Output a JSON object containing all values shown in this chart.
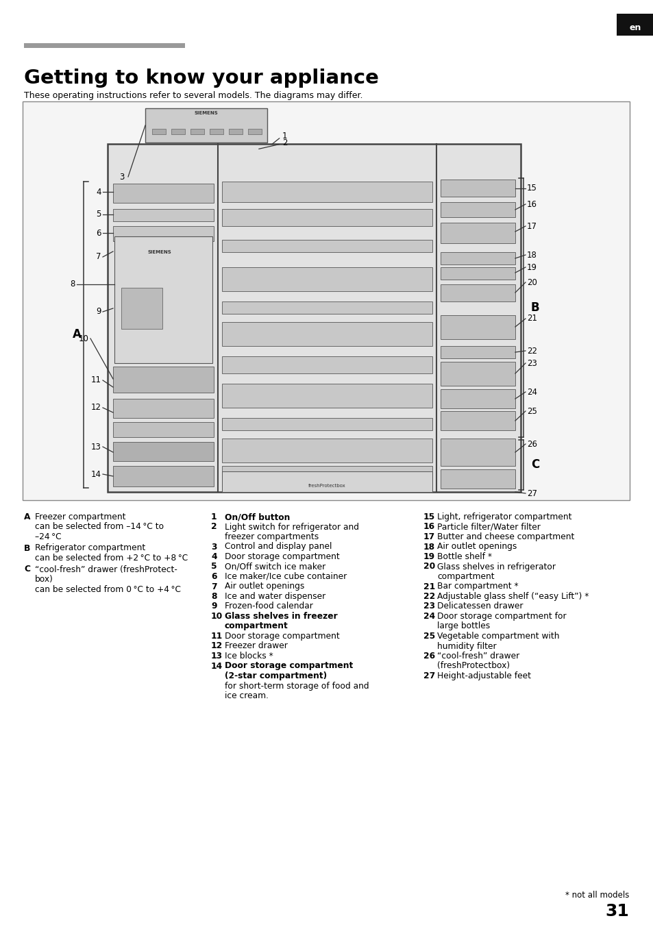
{
  "title": "Getting to know your appliance",
  "subtitle": "These operating instructions refer to several models. The diagrams may differ.",
  "page_num": "31",
  "lang_tag": "en",
  "header_bar_color": "#999999",
  "bg_color": "#ffffff",
  "text_color": "#000000",
  "diagram_border": "#777777",
  "col1_items": [
    {
      "label": "A",
      "bold_text": "Freezer compartment",
      "sub": "can be selected from –14 °C to\n–24 °C"
    },
    {
      "label": "B",
      "bold_text": "Refrigerator compartment",
      "sub": "can be selected from +2 °C to +8 °C"
    },
    {
      "label": "C",
      "bold_text": "“cool-fresh” drawer (freshProtect-\nbox)",
      "sub": "can be selected from 0 °C to +4 °C"
    }
  ],
  "col2_items": [
    {
      "num": "1",
      "bold": true,
      "text": "On/Off button"
    },
    {
      "num": "2",
      "bold": false,
      "text": "Light switch for refrigerator and\nfreezer compartments"
    },
    {
      "num": "3",
      "bold": false,
      "text": "Control and display panel"
    },
    {
      "num": "4",
      "bold": false,
      "text": "Door storage compartment"
    },
    {
      "num": "5",
      "bold": false,
      "text": "On/Off switch ice maker"
    },
    {
      "num": "6",
      "bold": false,
      "text": "Ice maker/Ice cube container"
    },
    {
      "num": "7",
      "bold": false,
      "text": "Air outlet openings"
    },
    {
      "num": "8",
      "bold": false,
      "text": "Ice and water dispenser"
    },
    {
      "num": "9",
      "bold": false,
      "text": "Frozen-food calendar"
    },
    {
      "num": "10",
      "bold": true,
      "text": "Glass shelves in freezer\ncompartment"
    },
    {
      "num": "11",
      "bold": false,
      "text": "Door storage compartment"
    },
    {
      "num": "12",
      "bold": false,
      "text": "Freezer drawer"
    },
    {
      "num": "13",
      "bold": false,
      "text": "Ice blocks *"
    },
    {
      "num": "14",
      "bold": true,
      "text": "Door storage compartment\n(2-star compartment)"
    },
    {
      "num": "",
      "bold": false,
      "text": "for short-term storage of food and\nice cream."
    }
  ],
  "col3_items": [
    {
      "num": "15",
      "text": "Light, refrigerator compartment"
    },
    {
      "num": "16",
      "text": "Particle filter/Water filter"
    },
    {
      "num": "17",
      "text": "Butter and cheese compartment"
    },
    {
      "num": "18",
      "text": "Air outlet openings"
    },
    {
      "num": "19",
      "text": "Bottle shelf *"
    },
    {
      "num": "20",
      "text": "Glass shelves in refrigerator\ncompartment"
    },
    {
      "num": "21",
      "text": "Bar compartment *"
    },
    {
      "num": "22",
      "text": "Adjustable glass shelf (“easy Lift”) *"
    },
    {
      "num": "23",
      "text": "Delicatessen drawer"
    },
    {
      "num": "24",
      "text": "Door storage compartment for\nlarge bottles"
    },
    {
      "num": "25",
      "text": "Vegetable compartment with\nhumidity filter"
    },
    {
      "num": "26",
      "text": "“cool-fresh” drawer\n(freshProtectbox)"
    },
    {
      "num": "27",
      "text": "Height-adjustable feet"
    }
  ],
  "footnote": "* not all models"
}
